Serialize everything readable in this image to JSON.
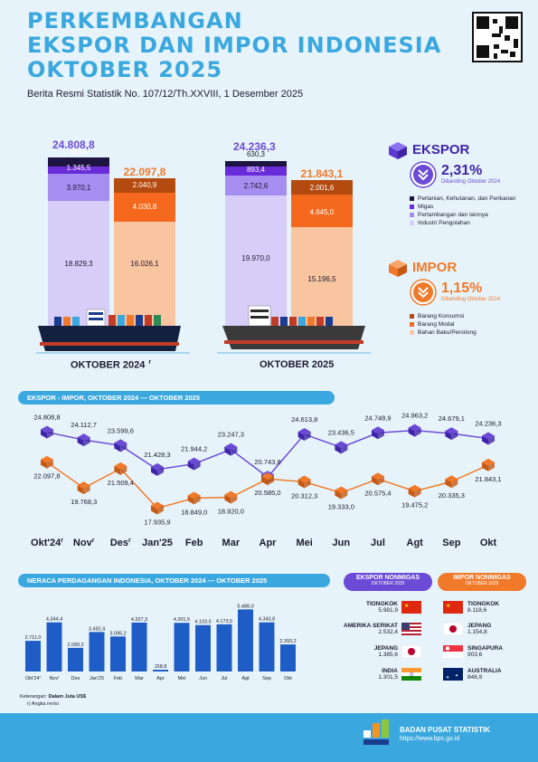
{
  "header": {
    "title_line1": "PERKEMBANGAN",
    "title_line2": "EKSPOR DAN IMPOR INDONESIA",
    "title_line3": "OKTOBER 2025",
    "subtitle": "Berita Resmi Statistik No. 107/12/Th.XXVIII, 1 Desember 2025"
  },
  "colors": {
    "blue": "#3aa8de",
    "ekspor": "#6b4bd6",
    "impor": "#f07a2a",
    "navy": "#1a3c8c"
  },
  "stacked": {
    "oct2024": {
      "label": "OKTOBER 2024",
      "label_mark": "r",
      "ekspor_total": "24.808,8",
      "ekspor_parts": [
        "663,9",
        "1.345,5",
        "3.970,1",
        "18.829,3"
      ],
      "impor_total": "22.097,8",
      "impor_parts": [
        "2.040,9",
        "4.030,8",
        "16.026,1"
      ]
    },
    "oct2025": {
      "label": "OKTOBER 2025",
      "ekspor_total": "24.236,3",
      "ekspor_parts": [
        "630,3",
        "893,4",
        "2.742,6",
        "19.970,0"
      ],
      "impor_total": "21.843,1",
      "impor_parts": [
        "2.001,6",
        "4.645,0",
        "15.196,5"
      ]
    }
  },
  "ekspor_panel": {
    "title": "EKSPOR",
    "change": "2,31%",
    "note": "Dibanding Oktober 2024",
    "legend": [
      "Pertanian, Kehutanan, dan Perikanan",
      "Migas",
      "Pertambangan dan lainnya",
      "Industri Pengolahan"
    ],
    "legend_colors": [
      "#1d1442",
      "#6a2bd9",
      "#a58ef0",
      "#d7cdf9"
    ]
  },
  "impor_panel": {
    "title": "IMPOR",
    "change": "1,15%",
    "note": "Dibanding Oktober 2024",
    "legend": [
      "Barang Konsumsi",
      "Barang Modal",
      "Bahan Baku/Penolong"
    ],
    "legend_colors": [
      "#b34a0f",
      "#f4691d",
      "#f9c4a0"
    ]
  },
  "trend_title": "EKSPOR - IMPOR, OKTOBER 2024 — OKTOBER 2025",
  "chart_data": [
    {
      "type": "line",
      "title": "EKSPOR - IMPOR, OKTOBER 2024 — OKTOBER 2025",
      "categories": [
        "Okt'24r",
        "Novr",
        "Desr",
        "Jan'25",
        "Feb",
        "Mar",
        "Apr",
        "Mei",
        "Jun",
        "Jul",
        "Agt",
        "Sep",
        "Okt"
      ],
      "category_labels": [
        "Okt'24",
        "Nov",
        "Des",
        "Jan'25",
        "Feb",
        "Mar",
        "Apr",
        "Mei",
        "Jun",
        "Jul",
        "Agt",
        "Sep",
        "Okt"
      ],
      "category_marks": [
        "r",
        "r",
        "r",
        "",
        "",
        "",
        "",
        "",
        "",
        "",
        "",
        "",
        ""
      ],
      "series": [
        {
          "name": "Ekspor",
          "values": [
            24808.8,
            24112.7,
            23599.6,
            21428.3,
            21944.2,
            23247.3,
            20743.8,
            24613.8,
            23436.5,
            24748.9,
            24963.2,
            24679.1,
            24236.3
          ],
          "labels": [
            "24.808,8",
            "24.112,7",
            "23.599,6",
            "21.428,3",
            "21.944,2",
            "23.247,3",
            "20.743,8",
            "24.613,8",
            "23.436,5",
            "24.748,9",
            "24.963,2",
            "24.679,1",
            "24.236,3"
          ]
        },
        {
          "name": "Impor",
          "values": [
            22097.8,
            19768.3,
            21509.4,
            17935.9,
            18849.0,
            18920.0,
            20585.0,
            20312.3,
            19333.0,
            20575.4,
            19475.2,
            20335.3,
            21843.1
          ],
          "labels": [
            "22.097,8",
            "19.768,3",
            "21.509,4",
            "17.935,9",
            "18.849,0",
            "18.920,0",
            "20.585,0",
            "20.312,3",
            "19.333,0",
            "20.575,4",
            "19.475,2",
            "20.335,3",
            "21.843,1"
          ]
        }
      ]
    },
    {
      "type": "bar",
      "title": "NERACA PERDAGANGAN INDONESIA, OKTOBER 2024 — OKTOBER 2025",
      "categories": [
        "Okt'24r",
        "Novr",
        "Des",
        "Jan'25",
        "Feb",
        "Mar",
        "Apr",
        "Mei",
        "Jun",
        "Jul",
        "Agt",
        "Sep",
        "Okt"
      ],
      "category_labels": [
        "Okt'24",
        "Nov",
        "Des",
        "Jan'25",
        "Feb",
        "Mar",
        "Apr",
        "Mei",
        "Jun",
        "Jul",
        "Agt",
        "Sep",
        "Okt"
      ],
      "category_marks": [
        "r",
        "r",
        "",
        "",
        "",
        "",
        "",
        "",
        "",
        "",
        "",
        "",
        ""
      ],
      "values": [
        2711.0,
        4344.4,
        2090.2,
        3492.4,
        3095.2,
        4327.3,
        158.8,
        4301.5,
        4103.5,
        4173.5,
        5488.0,
        4343.8,
        2393.2
      ],
      "labels": [
        "2.711,0",
        "4.344,4",
        "2.090,2",
        "3.492,4",
        "3.095,2",
        "4.327,3",
        "158,8",
        "4.301,5",
        "4.103,5",
        "4.173,5",
        "5.488,0",
        "4.343,8",
        "2.393,2"
      ]
    }
  ],
  "neraca_title": "NERACA PERDAGANGAN INDONESIA, OKTOBER 2024 — OKTOBER 2025",
  "nonmigas": {
    "ekspor_title": "EKSPOR NONMIGAS",
    "ekspor_sub": "OKTOBER 2025",
    "impor_title": "IMPOR NONMIGAS",
    "impor_sub": "OKTOBER 2025",
    "ekspor": [
      {
        "country": "TIONGKOK",
        "value": "5.981,9"
      },
      {
        "country": "AMERIKA SERIKAT",
        "value": "2.532,4"
      },
      {
        "country": "JEPANG",
        "value": "1.385,6"
      },
      {
        "country": "INDIA",
        "value": "1.301,5"
      }
    ],
    "impor": [
      {
        "country": "TIONGKOK",
        "value": "8.118,6"
      },
      {
        "country": "JEPANG",
        "value": "1.154,8"
      },
      {
        "country": "SINGAPURA",
        "value": "903,6"
      },
      {
        "country": "AUSTRALIA",
        "value": "846,9"
      }
    ]
  },
  "notes": {
    "line1_label": "Keterangan:",
    "line1_value": "Dalam Juta US$",
    "line2": "r) Angka revisi"
  },
  "footer": {
    "org": "BADAN PUSAT STATISTIK",
    "url": "https://www.bps.go.id"
  }
}
